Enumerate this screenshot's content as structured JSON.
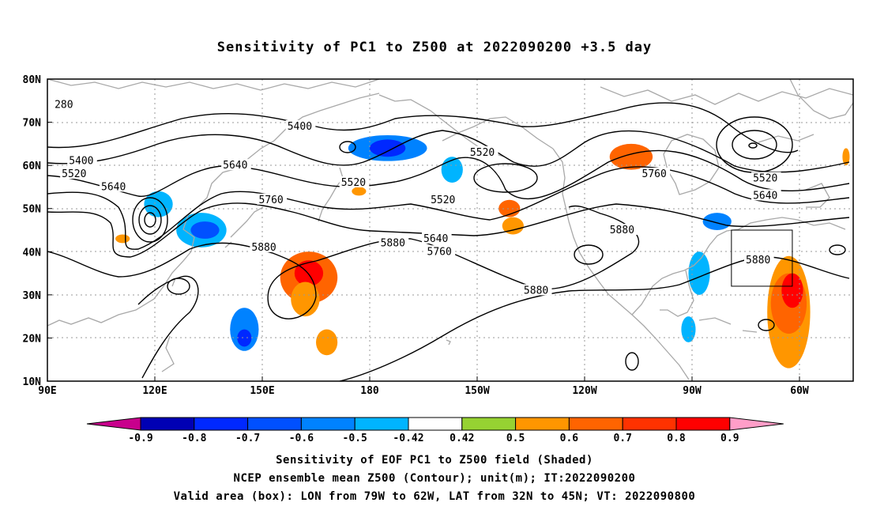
{
  "title": "Sensitivity of PC1 to Z500 at 2022090200 +3.5 day",
  "map": {
    "lat_labels": [
      "80N",
      "70N",
      "60N",
      "50N",
      "40N",
      "30N",
      "20N",
      "10N"
    ],
    "lon_labels": [
      "90E",
      "120E",
      "150E",
      "180",
      "150W",
      "120W",
      "90W",
      "60W"
    ],
    "lon_range": [
      90,
      315
    ],
    "lat_range": [
      10,
      80
    ],
    "valid_box": {
      "lon": [
        281,
        298
      ],
      "lat": [
        32,
        45
      ]
    },
    "contour_labels": [
      {
        "text": "280",
        "lon": 92,
        "lat": 74
      },
      {
        "text": "5400",
        "lon": 157,
        "lat": 69
      },
      {
        "text": "5400",
        "lon": 96,
        "lat": 61
      },
      {
        "text": "5520",
        "lon": 94,
        "lat": 58
      },
      {
        "text": "5640",
        "lon": 105,
        "lat": 55
      },
      {
        "text": "5640",
        "lon": 139,
        "lat": 60
      },
      {
        "text": "5760",
        "lon": 149,
        "lat": 52
      },
      {
        "text": "5520",
        "lon": 172,
        "lat": 56
      },
      {
        "text": "5880",
        "lon": 147,
        "lat": 41
      },
      {
        "text": "5880",
        "lon": 183,
        "lat": 42
      },
      {
        "text": "5520",
        "lon": 208,
        "lat": 63
      },
      {
        "text": "5520",
        "lon": 197,
        "lat": 52
      },
      {
        "text": "5640",
        "lon": 195,
        "lat": 43
      },
      {
        "text": "5760",
        "lon": 196,
        "lat": 40
      },
      {
        "text": "5880",
        "lon": 223,
        "lat": 31
      },
      {
        "text": "5880",
        "lon": 247,
        "lat": 45
      },
      {
        "text": "5760",
        "lon": 256,
        "lat": 58
      },
      {
        "text": "5520",
        "lon": 287,
        "lat": 57
      },
      {
        "text": "5640",
        "lon": 287,
        "lat": 53
      },
      {
        "text": "5880",
        "lon": 285,
        "lat": 38
      }
    ],
    "shaded_regions": [
      {
        "lon": 145,
        "lat": 22,
        "rx": 4,
        "ry": 5,
        "value": -0.6
      },
      {
        "lon": 145,
        "lat": 20,
        "rx": 2,
        "ry": 2,
        "value": -0.8
      },
      {
        "lon": 133,
        "lat": 45,
        "rx": 7,
        "ry": 4,
        "value": -0.5
      },
      {
        "lon": 134,
        "lat": 45,
        "rx": 4,
        "ry": 2,
        "value": -0.7
      },
      {
        "lon": 121,
        "lat": 51,
        "rx": 4,
        "ry": 3,
        "value": -0.5
      },
      {
        "lon": 185,
        "lat": 64,
        "rx": 11,
        "ry": 3,
        "value": -0.6
      },
      {
        "lon": 185,
        "lat": 64,
        "rx": 5,
        "ry": 2,
        "value": -0.8
      },
      {
        "lon": 203,
        "lat": 59,
        "rx": 3,
        "ry": 3,
        "value": -0.5
      },
      {
        "lon": 277,
        "lat": 47,
        "rx": 4,
        "ry": 2,
        "value": -0.6
      },
      {
        "lon": 272,
        "lat": 35,
        "rx": 3,
        "ry": 5,
        "value": -0.5
      },
      {
        "lon": 269,
        "lat": 22,
        "rx": 2,
        "ry": 3,
        "value": -0.5
      },
      {
        "lon": 163,
        "lat": 34,
        "rx": 8,
        "ry": 6,
        "value": 0.6
      },
      {
        "lon": 163,
        "lat": 35,
        "rx": 4,
        "ry": 3,
        "value": 0.8
      },
      {
        "lon": 162,
        "lat": 29,
        "rx": 4,
        "ry": 4,
        "value": 0.5
      },
      {
        "lon": 168,
        "lat": 19,
        "rx": 3,
        "ry": 3,
        "value": 0.5
      },
      {
        "lon": 177,
        "lat": 54,
        "rx": 2,
        "ry": 1,
        "value": 0.5
      },
      {
        "lon": 219,
        "lat": 50,
        "rx": 3,
        "ry": 2,
        "value": 0.6
      },
      {
        "lon": 220,
        "lat": 46,
        "rx": 3,
        "ry": 2,
        "value": 0.5
      },
      {
        "lon": 253,
        "lat": 62,
        "rx": 6,
        "ry": 3,
        "value": 0.6
      },
      {
        "lon": 297,
        "lat": 26,
        "rx": 6,
        "ry": 13,
        "value": 0.5
      },
      {
        "lon": 297,
        "lat": 28,
        "rx": 5,
        "ry": 7,
        "value": 0.6
      },
      {
        "lon": 298,
        "lat": 31,
        "rx": 3,
        "ry": 4,
        "value": 0.8
      },
      {
        "lon": 111,
        "lat": 43,
        "rx": 2,
        "ry": 1,
        "value": 0.5
      },
      {
        "lon": 313,
        "lat": 62,
        "rx": 1,
        "ry": 2,
        "value": 0.5
      }
    ]
  },
  "colorbar": {
    "labels": [
      "-0.9",
      "-0.8",
      "-0.7",
      "-0.6",
      "-0.5",
      "-0.42",
      "0.42",
      "0.5",
      "0.6",
      "0.7",
      "0.8",
      "0.9"
    ],
    "colors": [
      "#c8008c",
      "#0000b4",
      "#0028ff",
      "#0050ff",
      "#0082ff",
      "#00b4ff",
      "#ffffff",
      "#96d232",
      "#ff9600",
      "#ff6400",
      "#ff3200",
      "#ff0000",
      "#ff9ec8"
    ]
  },
  "captions": {
    "line1": "Sensitivity of EOF PC1 to Z500 field (Shaded)",
    "line2": "NCEP ensemble mean Z500 (Contour); unit(m); IT:2022090200",
    "line3": "Valid area (box): LON from 79W to 62W, LAT from 32N to 45N; VT: 2022090800"
  }
}
